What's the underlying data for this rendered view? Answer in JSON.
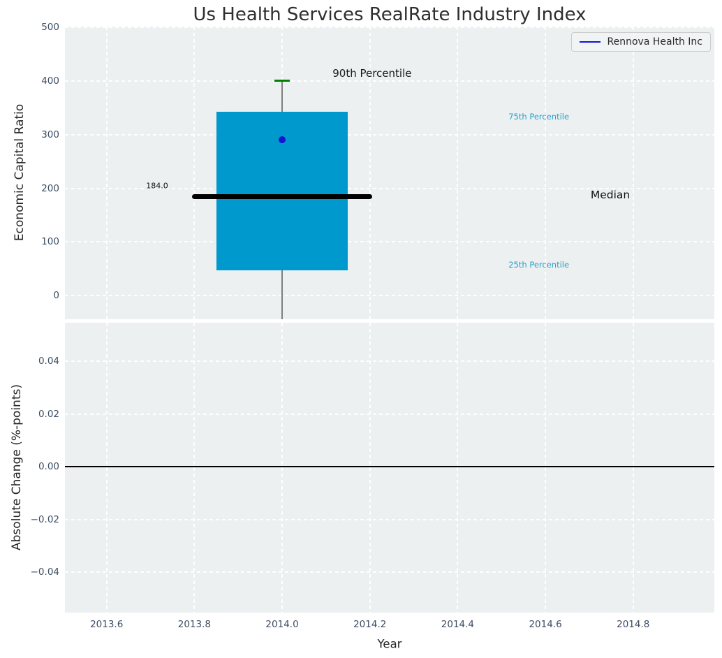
{
  "figure": {
    "background": "#ffffff",
    "axes_background": "#ecf0f1",
    "tick_color": "#3d4d63"
  },
  "legend": {
    "label": "Rennova Health Inc",
    "line_color": "#1111e0",
    "position": "upper right"
  },
  "chart_data": [
    {
      "type": "box",
      "title": "Us Health Services RealRate Industry Index",
      "ylabel": "Economic Capital Ratio",
      "xlabel": "",
      "grid": true,
      "x": 2014,
      "box": {
        "p90": 400,
        "p75": 343,
        "median": 184,
        "p25": 47,
        "whisker_low_clipped": true,
        "box_halfwidth": 0.15,
        "cap_halfwidth": 0.0175,
        "median_halfwidth": 0.205,
        "box_color": "#0099cd",
        "median_color": "#000000",
        "cap_color": "#007f00",
        "whisker_color": "#7f7f7f"
      },
      "series": [
        {
          "name": "Rennova Health Inc",
          "marker_color": "#1414d2",
          "points": [
            {
              "x": 2014,
              "y": 290
            }
          ]
        }
      ],
      "annotations": [
        {
          "name": "90th-percentile-label",
          "text": "90th Percentile",
          "x": 2014.205,
          "y": 414,
          "color": "#1a1a1a",
          "size": 15
        },
        {
          "name": "75th-percentile-label",
          "text": "75th Percentile",
          "x": 2014.585,
          "y": 334,
          "color": "#29a0cb",
          "size": 11.5
        },
        {
          "name": "median-label",
          "text": "Median",
          "x": 2014.748,
          "y": 188,
          "color": "#111111",
          "size": 15.5
        },
        {
          "name": "25th-percentile-label",
          "text": "25th Percentile",
          "x": 2014.585,
          "y": 58,
          "color": "#29a0cb",
          "size": 11.5
        },
        {
          "name": "median-value-label",
          "text": "184.0",
          "x": 2013.715,
          "y": 205,
          "color": "#111111",
          "size": 11
        }
      ],
      "xlim": [
        2013.505,
        2014.985
      ],
      "ylim": [
        -44,
        501.5
      ],
      "xticks": [
        2013.6,
        2013.8,
        2014.0,
        2014.2,
        2014.4,
        2014.6,
        2014.8
      ],
      "xtick_labels": [
        "2013.6",
        "2013.8",
        "2014.0",
        "2014.2",
        "2014.4",
        "2014.6",
        "2014.8"
      ],
      "yticks": [
        0,
        100,
        200,
        300,
        400,
        500
      ],
      "ytick_labels": [
        "0",
        "100",
        "200",
        "300",
        "400",
        "500"
      ]
    },
    {
      "type": "line",
      "title": "",
      "ylabel": "Absolute Change (%-points)",
      "xlabel": "Year",
      "grid": true,
      "series": [],
      "zero_line": 0.0,
      "xlim": [
        2013.505,
        2014.985
      ],
      "ylim": [
        -0.0553,
        0.0547
      ],
      "xticks": [
        2013.6,
        2013.8,
        2014.0,
        2014.2,
        2014.4,
        2014.6,
        2014.8
      ],
      "xtick_labels": [
        "2013.6",
        "2013.8",
        "2014.0",
        "2014.2",
        "2014.4",
        "2014.6",
        "2014.8"
      ],
      "yticks": [
        0.04,
        0.02,
        0.0,
        -0.02,
        -0.04
      ],
      "ytick_labels": [
        "0.04",
        "0.02",
        "0.00",
        "−0.02",
        "−0.04"
      ]
    }
  ]
}
